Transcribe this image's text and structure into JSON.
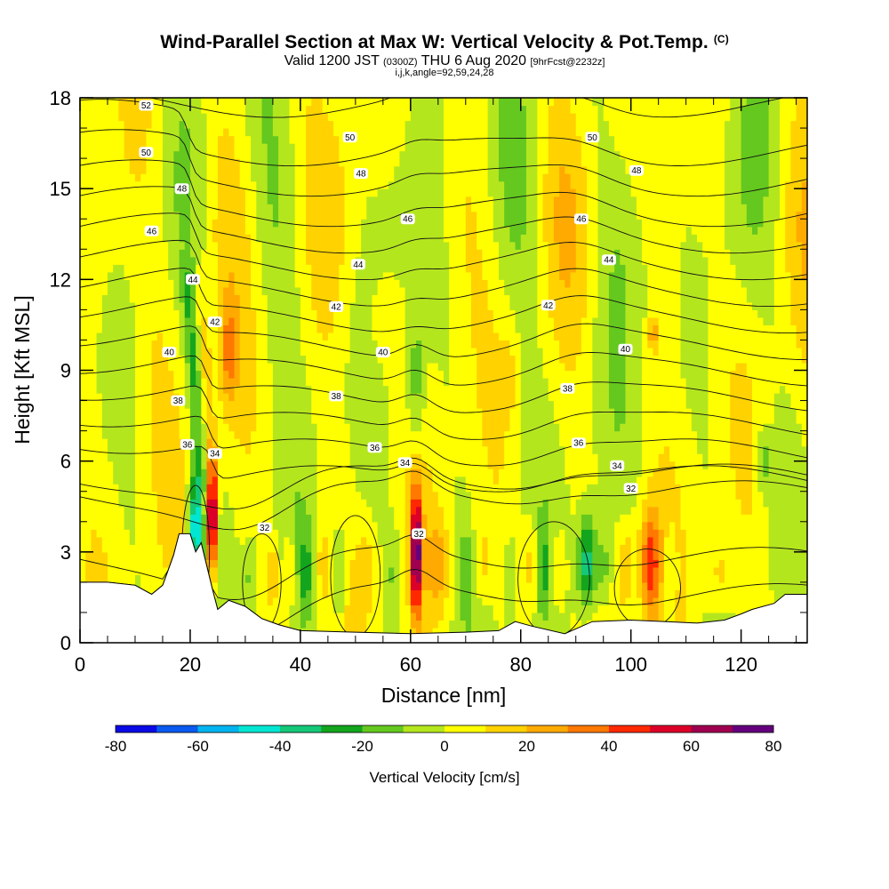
{
  "header": {
    "title": "Wind-Parallel Section at Max W: Vertical Velocity & Pot.Temp.",
    "title_units": "(C)",
    "valid_prefix": "Valid 1200 JST",
    "valid_utc": "(0300Z)",
    "valid_date": "THU 6 Aug 2020",
    "valid_fcst": "[9hrFcst@2232z]",
    "params": "i,j,k,angle=92,59,24,28"
  },
  "chart_data": {
    "type": "heatmap",
    "xlabel": "Distance [nm]",
    "ylabel": "Height [Kft MSL]",
    "xlim": [
      0,
      132
    ],
    "ylim": [
      0,
      18
    ],
    "x_ticks": [
      0,
      20,
      40,
      60,
      80,
      100,
      120
    ],
    "y_ticks": [
      0,
      3,
      6,
      9,
      12,
      15,
      18
    ],
    "colorbar": {
      "label": "Vertical Velocity [cm/s]",
      "range": [
        -80,
        80
      ],
      "tick_labels": [
        "-80",
        "-60",
        "-40",
        "-20",
        "0",
        "20",
        "40",
        "60",
        "80"
      ],
      "colors": [
        "#0a0ae6",
        "#0a5af0",
        "#00b4f0",
        "#00e6d2",
        "#14c878",
        "#14a51e",
        "#64c81e",
        "#b4e61e",
        "#ffff00",
        "#ffd200",
        "#ffaa00",
        "#ff7800",
        "#ff2800",
        "#dc0028",
        "#a00050",
        "#64007d"
      ]
    },
    "theta_contour_labels": [
      {
        "text": "52",
        "x": 12,
        "y": 17.75
      },
      {
        "text": "50",
        "x": 12,
        "y": 16.2
      },
      {
        "text": "50",
        "x": 49,
        "y": 16.7
      },
      {
        "text": "50",
        "x": 93,
        "y": 16.7
      },
      {
        "text": "48",
        "x": 18.5,
        "y": 15.0
      },
      {
        "text": "48",
        "x": 51,
        "y": 15.5
      },
      {
        "text": "48",
        "x": 101,
        "y": 15.6
      },
      {
        "text": "46",
        "x": 13,
        "y": 13.6
      },
      {
        "text": "46",
        "x": 59.5,
        "y": 14.0
      },
      {
        "text": "46",
        "x": 91,
        "y": 14.0
      },
      {
        "text": "44",
        "x": 20.5,
        "y": 12.0
      },
      {
        "text": "44",
        "x": 50.5,
        "y": 12.5
      },
      {
        "text": "44",
        "x": 96,
        "y": 12.65
      },
      {
        "text": "42",
        "x": 24.5,
        "y": 10.6
      },
      {
        "text": "42",
        "x": 46.5,
        "y": 11.1
      },
      {
        "text": "42",
        "x": 85,
        "y": 11.15
      },
      {
        "text": "40",
        "x": 16.2,
        "y": 9.6
      },
      {
        "text": "40",
        "x": 55,
        "y": 9.6
      },
      {
        "text": "40",
        "x": 99,
        "y": 9.7
      },
      {
        "text": "38",
        "x": 17.8,
        "y": 8.0
      },
      {
        "text": "38",
        "x": 46.5,
        "y": 8.15
      },
      {
        "text": "38",
        "x": 88.5,
        "y": 8.4
      },
      {
        "text": "36",
        "x": 19.5,
        "y": 6.55
      },
      {
        "text": "36",
        "x": 53.5,
        "y": 6.45
      },
      {
        "text": "36",
        "x": 90.5,
        "y": 6.6
      },
      {
        "text": "34",
        "x": 24.5,
        "y": 6.25
      },
      {
        "text": "34",
        "x": 59,
        "y": 5.95
      },
      {
        "text": "34",
        "x": 97.5,
        "y": 5.85
      },
      {
        "text": "32",
        "x": 33.5,
        "y": 3.8
      },
      {
        "text": "32",
        "x": 61.5,
        "y": 3.6
      },
      {
        "text": "32",
        "x": 100,
        "y": 5.1
      }
    ],
    "features": {
      "terrain_top_kft": [
        [
          0,
          2.0
        ],
        [
          5,
          2.0
        ],
        [
          10,
          1.9
        ],
        [
          13,
          1.6
        ],
        [
          15,
          1.9
        ],
        [
          16,
          2.4
        ],
        [
          17,
          2.9
        ],
        [
          18,
          3.6
        ],
        [
          20,
          3.6
        ],
        [
          21,
          3.0
        ],
        [
          22,
          3.3
        ],
        [
          24,
          1.8
        ],
        [
          25,
          1.1
        ],
        [
          27,
          1.4
        ],
        [
          30,
          1.2
        ],
        [
          33,
          0.8
        ],
        [
          36,
          0.6
        ],
        [
          40,
          0.4
        ],
        [
          50,
          0.35
        ],
        [
          60,
          0.3
        ],
        [
          70,
          0.35
        ],
        [
          76,
          0.4
        ],
        [
          79,
          0.7
        ],
        [
          82,
          0.55
        ],
        [
          88,
          0.3
        ],
        [
          93,
          0.7
        ],
        [
          100,
          0.75
        ],
        [
          112,
          0.65
        ],
        [
          117,
          0.75
        ],
        [
          120,
          0.95
        ],
        [
          122,
          1.1
        ],
        [
          126,
          1.3
        ],
        [
          128,
          1.6
        ],
        [
          132,
          1.6
        ]
      ]
    }
  }
}
